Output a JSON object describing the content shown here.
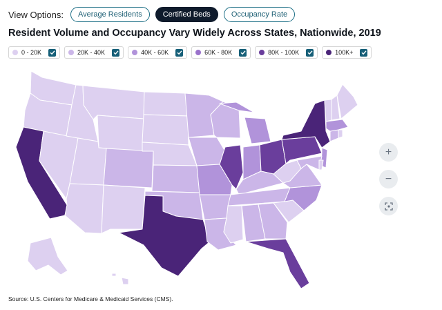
{
  "view_options": {
    "label": "View Options:",
    "buttons": [
      {
        "label": "Average Residents",
        "active": false
      },
      {
        "label": "Certified Beds",
        "active": true
      },
      {
        "label": "Occupancy Rate",
        "active": false
      }
    ]
  },
  "title": "Resident Volume and Occupancy Vary Widely Across States, Nationwide, 2019",
  "legend": [
    {
      "label": "0 - 20K",
      "color": "#ddd0f0",
      "checked": true
    },
    {
      "label": "20K - 40K",
      "color": "#cbb6e8",
      "checked": true
    },
    {
      "label": "40K - 60K",
      "color": "#b193da",
      "checked": true
    },
    {
      "label": "60K - 80K",
      "color": "#9a72cc",
      "checked": true
    },
    {
      "label": "80K - 100K",
      "color": "#6a3e9c",
      "checked": true
    },
    {
      "label": "100K+",
      "color": "#4a2478",
      "checked": true
    }
  ],
  "map_data": {
    "metric": "Certified Beds",
    "states": {
      "WA": "0 - 20K",
      "OR": "0 - 20K",
      "CA": "100K+",
      "NV": "0 - 20K",
      "ID": "0 - 20K",
      "MT": "0 - 20K",
      "WY": "0 - 20K",
      "UT": "0 - 20K",
      "AZ": "0 - 20K",
      "CO": "20K - 40K",
      "NM": "0 - 20K",
      "ND": "0 - 20K",
      "SD": "0 - 20K",
      "NE": "0 - 20K",
      "KS": "20K - 40K",
      "OK": "20K - 40K",
      "TX": "100K+",
      "MN": "20K - 40K",
      "IA": "20K - 40K",
      "MO": "40K - 60K",
      "AR": "20K - 40K",
      "LA": "20K - 40K",
      "WI": "20K - 40K",
      "IL": "80K - 100K",
      "MI": "40K - 60K",
      "IN": "40K - 60K",
      "OH": "80K - 100K",
      "KY": "20K - 40K",
      "TN": "20K - 40K",
      "MS": "0 - 20K",
      "AL": "20K - 40K",
      "GA": "20K - 40K",
      "FL": "80K - 100K",
      "SC": "0 - 20K",
      "NC": "40K - 60K",
      "VA": "20K - 40K",
      "WV": "0 - 20K",
      "PA": "80K - 100K",
      "NY": "100K+",
      "NJ": "40K - 60K",
      "MD": "20K - 40K",
      "DE": "0 - 20K",
      "CT": "20K - 40K",
      "RI": "0 - 20K",
      "MA": "40K - 60K",
      "VT": "0 - 20K",
      "NH": "0 - 20K",
      "ME": "0 - 20K",
      "AK": "0 - 20K",
      "HI": "0 - 20K"
    }
  },
  "controls": {
    "zoom_in": "+",
    "zoom_out": "−"
  },
  "source": "Source: U.S. Centers for Medicare & Medicaid Services (CMS)."
}
